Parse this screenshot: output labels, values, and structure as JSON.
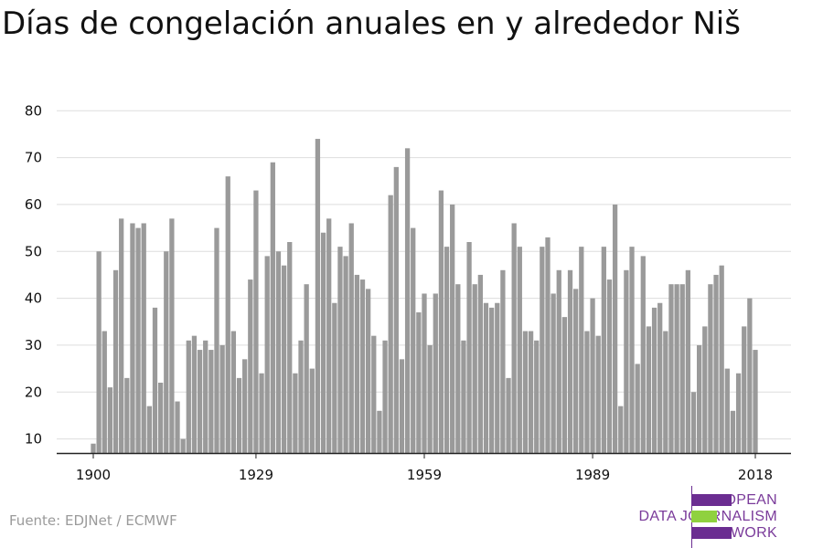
{
  "title": "Días de congelación anuales en y alrededor Niš",
  "source": "Fuente: EDJNet / ECMWF",
  "logo": {
    "line1": "EUROPEAN",
    "line2": "DATA JOURNALISM",
    "line3": "NETWORK",
    "purple": "#6b2d91",
    "green": "#8fd13f"
  },
  "colors": {
    "bar": "#9a9a9a",
    "grid": "#dddddd",
    "axis": "#222222",
    "text": "#111111"
  },
  "chart_data": {
    "type": "bar",
    "title": "Días de congelación anuales en y alrededor Niš",
    "xlabel": "",
    "ylabel": "",
    "x_ticks": [
      1900,
      1929,
      1959,
      1989,
      2018
    ],
    "y_ticks": [
      10,
      20,
      30,
      40,
      50,
      60,
      70,
      80
    ],
    "ylim": [
      7,
      82
    ],
    "grid": true,
    "x": [
      1900,
      1901,
      1902,
      1903,
      1904,
      1905,
      1906,
      1907,
      1908,
      1909,
      1910,
      1911,
      1912,
      1913,
      1914,
      1915,
      1916,
      1917,
      1918,
      1919,
      1920,
      1921,
      1922,
      1923,
      1924,
      1925,
      1926,
      1927,
      1928,
      1929,
      1930,
      1931,
      1932,
      1933,
      1934,
      1935,
      1936,
      1937,
      1938,
      1939,
      1940,
      1941,
      1942,
      1943,
      1944,
      1945,
      1946,
      1947,
      1948,
      1949,
      1950,
      1951,
      1952,
      1953,
      1954,
      1955,
      1956,
      1957,
      1958,
      1959,
      1960,
      1961,
      1962,
      1963,
      1964,
      1965,
      1966,
      1967,
      1968,
      1969,
      1970,
      1971,
      1972,
      1973,
      1974,
      1975,
      1976,
      1977,
      1978,
      1979,
      1980,
      1981,
      1982,
      1983,
      1984,
      1985,
      1986,
      1987,
      1988,
      1989,
      1990,
      1991,
      1992,
      1993,
      1994,
      1995,
      1996,
      1997,
      1998,
      1999,
      2000,
      2001,
      2002,
      2003,
      2004,
      2005,
      2006,
      2007,
      2008,
      2009,
      2010,
      2011,
      2012,
      2013,
      2014,
      2015,
      2016,
      2017,
      2018
    ],
    "values": [
      9,
      50,
      33,
      21,
      46,
      57,
      23,
      56,
      55,
      56,
      17,
      38,
      22,
      50,
      57,
      18,
      10,
      31,
      32,
      29,
      31,
      29,
      55,
      30,
      66,
      33,
      23,
      27,
      44,
      63,
      24,
      49,
      69,
      50,
      47,
      52,
      24,
      31,
      43,
      25,
      74,
      54,
      57,
      39,
      51,
      49,
      56,
      45,
      44,
      42,
      32,
      16,
      31,
      62,
      68,
      27,
      72,
      55,
      37,
      41,
      30,
      41,
      63,
      51,
      60,
      43,
      31,
      52,
      43,
      45,
      39,
      38,
      39,
      46,
      23,
      56,
      51,
      33,
      33,
      31,
      51,
      53,
      41,
      46,
      36,
      46,
      42,
      51,
      33,
      40,
      32,
      51,
      44,
      60,
      17,
      46,
      51,
      26,
      49,
      34,
      38,
      39,
      33,
      43,
      43,
      43,
      46,
      20,
      30,
      34,
      43,
      45,
      47,
      25,
      16,
      24,
      34,
      40,
      29
    ]
  }
}
